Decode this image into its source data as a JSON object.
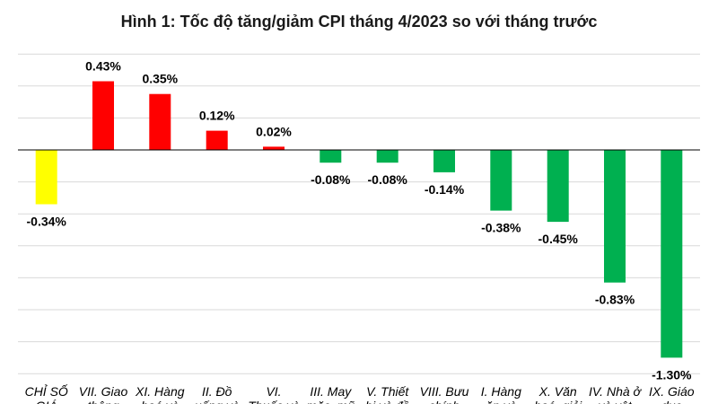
{
  "chart_data": {
    "type": "bar",
    "title": "Hình 1: Tốc độ tăng/giảm CPI tháng 4/2023 so với tháng trước",
    "xlabel": "",
    "ylabel": "",
    "ylim": [
      -1.4,
      0.6
    ],
    "grid": true,
    "legend": "none",
    "categories": [
      [
        "CHỈ SỐ",
        "GIÁ"
      ],
      [
        "VII. Giao",
        "thông"
      ],
      [
        "XI. Hàng",
        "hoá và"
      ],
      [
        "II. Đồ",
        "uống và"
      ],
      [
        "VI.",
        "Thuốc và"
      ],
      [
        "III. May",
        "mặc, mũ"
      ],
      [
        "V. Thiết",
        "bị và đồ"
      ],
      [
        "VIII. Bưu",
        "chính"
      ],
      [
        "I. Hàng",
        "ăn và"
      ],
      [
        "X. Văn",
        "hoá, giải"
      ],
      [
        "IV. Nhà ở",
        "và vật"
      ],
      [
        "IX. Giáo",
        "dục"
      ]
    ],
    "values": [
      -0.34,
      0.43,
      0.35,
      0.12,
      0.02,
      -0.08,
      -0.08,
      -0.14,
      -0.38,
      -0.45,
      -0.83,
      -1.3
    ],
    "value_labels": [
      "-0.34%",
      "0.43%",
      "0.35%",
      "0.12%",
      "0.02%",
      "-0.08%",
      "-0.08%",
      "-0.14%",
      "-0.38%",
      "-0.45%",
      "-0.83%",
      "-1.30%"
    ],
    "colors": {
      "total": "#ffff00",
      "increase": "#ff0000",
      "decrease": "#00b050",
      "gridline": "#d9d9d9",
      "axis": "#000000"
    }
  }
}
